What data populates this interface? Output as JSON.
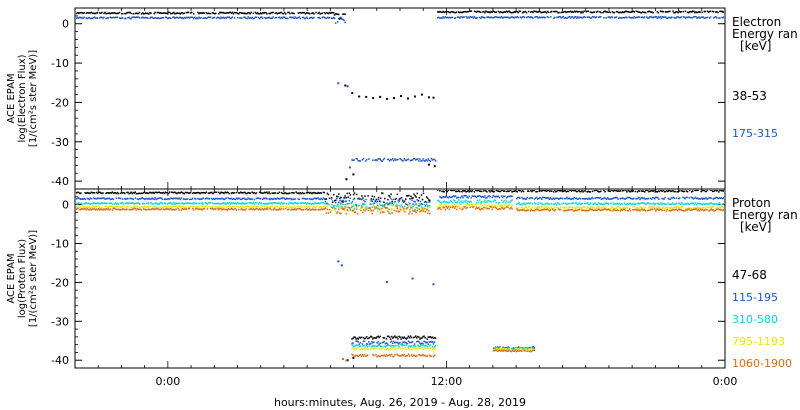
{
  "chart_data": [
    {
      "type": "scatter",
      "panel": "electron",
      "ylabel_lines": [
        "ACE EPAM",
        "log(Electron Flux)",
        "[1/(cm²s ster MeV)]"
      ],
      "ylim": [
        -42,
        4
      ],
      "yticks": [
        0,
        -10,
        -20,
        -30,
        -40
      ],
      "xlim": [
        0,
        56
      ],
      "legend_title": [
        "Electron",
        "Energy ran",
        "[keV]"
      ],
      "legend_placement": "right",
      "series": [
        {
          "name": "38-53",
          "color": "#000000",
          "segments": [
            {
              "x": [
                0,
                22.3
              ],
              "y": 2.7,
              "jitter": 0.2
            },
            {
              "x": [
                22.3,
                23.2
              ],
              "y": 1.9,
              "jitter": 0.8
            },
            {
              "x": [
                31.2,
                56
              ],
              "y": 3.0,
              "jitter": 0.2
            }
          ],
          "points": [
            [
              23.2,
              -15.7
            ],
            [
              23.8,
              -17.6
            ],
            [
              24.4,
              -18.5
            ],
            [
              25.0,
              -18.6
            ],
            [
              25.6,
              -18.9
            ],
            [
              26.2,
              -18.6
            ],
            [
              26.8,
              -19.1
            ],
            [
              27.4,
              -18.9
            ],
            [
              28.0,
              -18.4
            ],
            [
              28.6,
              -19.0
            ],
            [
              29.2,
              -18.5
            ],
            [
              29.8,
              -18.0
            ],
            [
              30.4,
              -18.7
            ],
            [
              30.8,
              -18.8
            ],
            [
              23.3,
              -39.5
            ],
            [
              23.9,
              -38.3
            ],
            [
              30.9,
              -36.2
            ],
            [
              30.4,
              -35.8
            ]
          ]
        },
        {
          "name": "175-315",
          "color": "#1f55c8",
          "segments": [
            {
              "x": [
                0,
                22.3
              ],
              "y": 1.5,
              "jitter": 0.2
            },
            {
              "x": [
                22.3,
                23.2
              ],
              "y": 0.9,
              "jitter": 0.8
            },
            {
              "x": [
                31.2,
                56
              ],
              "y": 1.6,
              "jitter": 0.2
            },
            {
              "x": [
                23.8,
                31.0
              ],
              "y": -34.6,
              "jitter": 0.35
            }
          ],
          "points": [
            [
              22.6,
              -15.1
            ],
            [
              23.4,
              -15.9
            ],
            [
              23.6,
              -36.5
            ]
          ]
        }
      ]
    },
    {
      "type": "scatter",
      "panel": "proton",
      "ylabel_lines": [
        "ACE EPAM",
        "log(Proton Flux)",
        "[1/(cm²s ster MeV)]"
      ],
      "ylim": [
        -42,
        4
      ],
      "yticks": [
        0,
        -10,
        -20,
        -30,
        -40
      ],
      "xlim": [
        0,
        56
      ],
      "xticks": [
        {
          "x": 8,
          "label": "0:00"
        },
        {
          "x": 32,
          "label": "12:00"
        },
        {
          "x": 56,
          "label": "0:00"
        }
      ],
      "xlabel": "hours:minutes, Aug. 26, 2019 - Aug. 28, 2019",
      "legend_title": [
        "Proton",
        "Energy ran",
        "[keV]"
      ],
      "legend_placement": "right",
      "series": [
        {
          "name": "47-68",
          "color": "#000000",
          "segments": [
            {
              "x": [
                0,
                21.5
              ],
              "y": 3.0,
              "jitter": 0.2
            },
            {
              "x": [
                21.5,
                30.5
              ],
              "y": 1.8,
              "jitter": 1.2
            },
            {
              "x": [
                31.2,
                56
              ],
              "y": 3.5,
              "jitter": 0.25
            },
            {
              "x": [
                23.8,
                31.0
              ],
              "y": -34.2,
              "jitter": 0.4
            }
          ],
          "points": [
            [
              23.4,
              -40.0
            ],
            [
              23.9,
              -39.4
            ]
          ]
        },
        {
          "name": "115-195",
          "color": "#1f55c8",
          "segments": [
            {
              "x": [
                0,
                21.5
              ],
              "y": 1.5,
              "jitter": 0.2
            },
            {
              "x": [
                21.5,
                30.5
              ],
              "y": 0.6,
              "jitter": 1.0
            },
            {
              "x": [
                31.2,
                37.6
              ],
              "y": 2.0,
              "jitter": 0.3
            },
            {
              "x": [
                38.0,
                56
              ],
              "y": 1.6,
              "jitter": 0.25
            },
            {
              "x": [
                23.8,
                31.0
              ],
              "y": -35.5,
              "jitter": 0.4
            },
            {
              "x": [
                36.0,
                39.6
              ],
              "y": -36.8,
              "jitter": 0.25
            }
          ],
          "points": [
            [
              22.6,
              -14.6
            ],
            [
              22.9,
              -15.6
            ],
            [
              26.8,
              -19.9
            ],
            [
              29.0,
              -19.0
            ],
            [
              30.8,
              -20.5
            ]
          ]
        },
        {
          "name": "310-580",
          "color": "#00d8e0",
          "segments": [
            {
              "x": [
                0,
                21.5
              ],
              "y": 0.3,
              "jitter": 0.2
            },
            {
              "x": [
                21.5,
                30.5
              ],
              "y": -0.4,
              "jitter": 1.0
            },
            {
              "x": [
                31.2,
                37.6
              ],
              "y": 0.8,
              "jitter": 0.4
            },
            {
              "x": [
                38.0,
                56
              ],
              "y": 0.2,
              "jitter": 0.25
            },
            {
              "x": [
                23.8,
                31.0
              ],
              "y": -36.3,
              "jitter": 0.3
            },
            {
              "x": [
                36.0,
                39.6
              ],
              "y": -37.0,
              "jitter": 0.25
            }
          ],
          "points": []
        },
        {
          "name": "795-1193",
          "color": "#e8e800",
          "segments": [
            {
              "x": [
                0,
                21.5
              ],
              "y": -0.6,
              "jitter": 0.2
            },
            {
              "x": [
                21.5,
                30.5
              ],
              "y": -1.0,
              "jitter": 0.9
            },
            {
              "x": [
                31.2,
                37.6
              ],
              "y": -0.3,
              "jitter": 0.4
            },
            {
              "x": [
                38.0,
                56
              ],
              "y": -0.8,
              "jitter": 0.25
            },
            {
              "x": [
                23.8,
                31.0
              ],
              "y": -37.0,
              "jitter": 0.3
            },
            {
              "x": [
                36.0,
                39.6
              ],
              "y": -37.2,
              "jitter": 0.2
            }
          ],
          "points": []
        },
        {
          "name": "1060-1900",
          "color": "#e06a10",
          "segments": [
            {
              "x": [
                0,
                21.5
              ],
              "y": -1.2,
              "jitter": 0.2
            },
            {
              "x": [
                21.5,
                30.5
              ],
              "y": -1.5,
              "jitter": 0.9
            },
            {
              "x": [
                31.2,
                37.6
              ],
              "y": -0.9,
              "jitter": 0.4
            },
            {
              "x": [
                38.0,
                56
              ],
              "y": -1.4,
              "jitter": 0.25
            },
            {
              "x": [
                23.8,
                31.0
              ],
              "y": -38.8,
              "jitter": 0.3
            },
            {
              "x": [
                36.0,
                39.6
              ],
              "y": -37.6,
              "jitter": 0.2
            }
          ],
          "points": [
            [
              23.0,
              -39.7
            ],
            [
              23.3,
              -40.1
            ]
          ]
        }
      ]
    }
  ]
}
